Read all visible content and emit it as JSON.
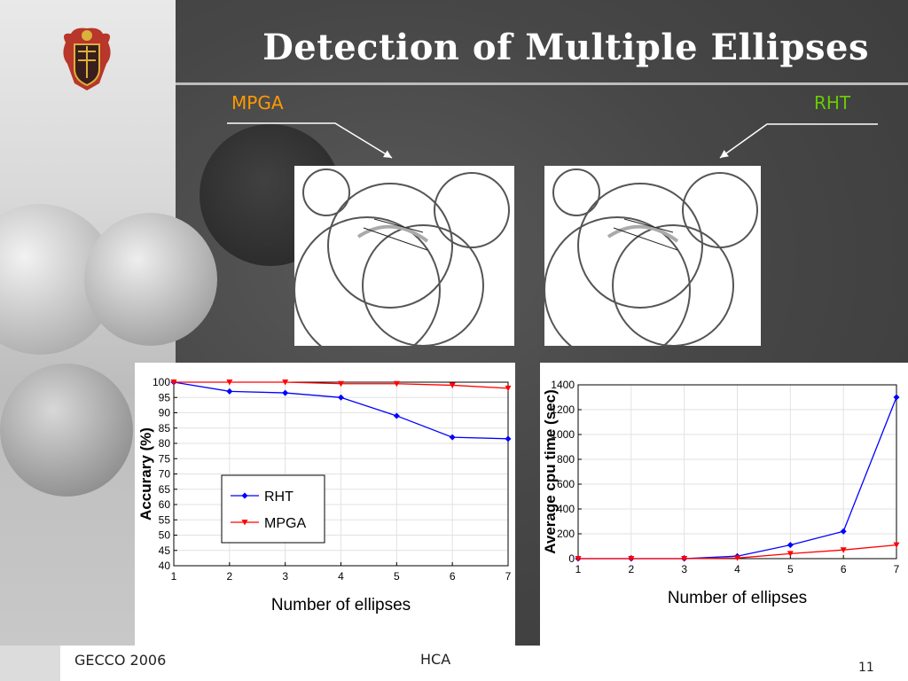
{
  "slide": {
    "title": "Detection of Multiple Ellipses",
    "label_left": "MPGA",
    "label_right": "RHT",
    "label_left_color": "#ff9900",
    "label_right_color": "#66cc00",
    "logo_icon": "coat-of-arms-icon"
  },
  "footer": {
    "left": "GECCO 2006",
    "center": "HCA",
    "page": "11"
  },
  "chart_data": [
    {
      "type": "line",
      "x": [
        1,
        2,
        3,
        4,
        5,
        6,
        7
      ],
      "xlabel": "Number of ellipses",
      "ylabel": "Accurary (%)",
      "xlim": [
        1,
        7
      ],
      "ylim": [
        40,
        100
      ],
      "yticks": [
        40,
        45,
        50,
        55,
        60,
        65,
        70,
        75,
        80,
        85,
        90,
        95,
        100
      ],
      "xticks": [
        1,
        2,
        3,
        4,
        5,
        6,
        7
      ],
      "legend": "center-left",
      "series": [
        {
          "name": "RHT",
          "color": "#0000ff",
          "marker": "diamond",
          "values": [
            100,
            97,
            96.5,
            95,
            89,
            82,
            81.5
          ]
        },
        {
          "name": "MPGA",
          "color": "#ff0000",
          "marker": "triangle-down",
          "values": [
            100,
            100,
            100,
            99.5,
            99.5,
            99,
            98
          ]
        }
      ]
    },
    {
      "type": "line",
      "x": [
        1,
        2,
        3,
        4,
        5,
        6,
        7
      ],
      "xlabel": "Number of ellipses",
      "ylabel": "Average cpu time (sec)",
      "xlim": [
        1,
        7
      ],
      "ylim": [
        0,
        1400
      ],
      "yticks": [
        0,
        200,
        400,
        600,
        800,
        1000,
        1200,
        1400
      ],
      "xticks": [
        1,
        2,
        3,
        4,
        5,
        6,
        7
      ],
      "series": [
        {
          "name": "RHT",
          "color": "#0000ff",
          "marker": "diamond",
          "values": [
            0,
            0,
            0,
            20,
            110,
            220,
            1300
          ]
        },
        {
          "name": "MPGA",
          "color": "#ff0000",
          "marker": "triangle-down",
          "values": [
            0,
            0,
            0,
            5,
            40,
            70,
            110
          ]
        }
      ]
    }
  ]
}
